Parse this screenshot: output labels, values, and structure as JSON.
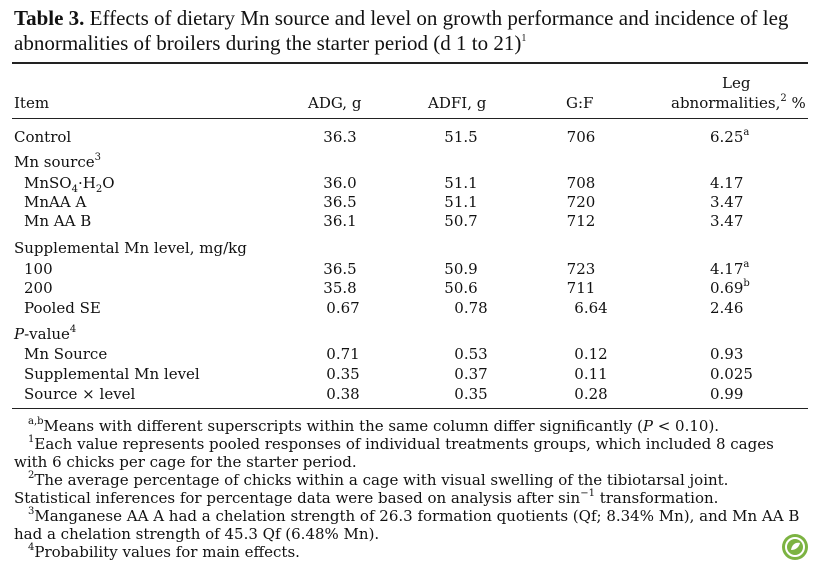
{
  "title": {
    "label": "Table 3.",
    "text": "Effects of dietary Mn source and level on growth performance and incidence of leg abnormalities of broilers during the starter period (d 1 to 21)",
    "sup": "1"
  },
  "header": {
    "item": "Item",
    "adg": "ADG, g",
    "adfi": "ADFI, g",
    "gf": "G:F",
    "leg_line1": "Leg",
    "leg_line2": "abnormalities,",
    "leg_sup": "2",
    "leg_unit": " %"
  },
  "rows": {
    "control": {
      "label": "Control",
      "adg": "36.3",
      "adfi": "51.5",
      "gf": "706",
      "leg": "6.25",
      "leg_sup": "a"
    },
    "mn_source": {
      "label": "Mn source",
      "sup": "3"
    },
    "mnso4": {
      "label_a": "MnSO",
      "sub1": "4",
      "label_b": "·H",
      "sub2": "2",
      "label_c": "O",
      "adg": "36.0",
      "adfi": "51.1",
      "gf": "708",
      "leg": "4.17"
    },
    "mnaa_a": {
      "label": "MnAA A",
      "adg": "36.5",
      "adfi": "51.1",
      "gf": "720",
      "leg": "3.47"
    },
    "mnaa_b": {
      "label": "Mn AA B",
      "adg": "36.1",
      "adfi": "50.7",
      "gf": "712",
      "leg": "3.47"
    },
    "supp_level": {
      "label": "Supplemental Mn level, mg/kg"
    },
    "l100": {
      "label": "100",
      "adg": "36.5",
      "adfi": "50.9",
      "gf": "723",
      "leg": "4.17",
      "leg_sup": "a"
    },
    "l200": {
      "label": "200",
      "adg": "35.8",
      "adfi": "50.6",
      "gf": "711",
      "leg": "0.69",
      "leg_sup": "b"
    },
    "pooled": {
      "label": "Pooled SE",
      "adg": "0.67",
      "adfi": "0.78",
      "gf": "6.64",
      "leg": "2.46"
    },
    "pvalue": {
      "label": "P",
      "label_rest": "-value",
      "sup": "4"
    },
    "p_source": {
      "label": "Mn Source",
      "adg": "0.71",
      "adfi": "0.53",
      "gf": "0.12",
      "leg": "0.93"
    },
    "p_level": {
      "label": "Supplemental Mn level",
      "adg": "0.35",
      "adfi": "0.37",
      "gf": "0.11",
      "leg": "0.025"
    },
    "p_inter": {
      "label": "Source × level",
      "adg": "0.38",
      "adfi": "0.35",
      "gf": "0.28",
      "leg": "0.99"
    }
  },
  "footnotes": {
    "ab_sup": "a,b",
    "ab_text": "Means with different superscripts within the same column differ significantly (",
    "ab_p": "P",
    "ab_tail": " < 0.10).",
    "f1_sup": "1",
    "f1_text": "Each value represents pooled responses of individual treatments groups, which included 8 cages with 6 chicks per cage for the starter period.",
    "f2_sup": "2",
    "f2_text_a": "The average percentage of chicks within a cage with visual swelling of the tibiotarsal joint. Statistical inferences for percentage data were based on analysis after sin",
    "f2_sup2": "−1",
    "f2_text_b": " transformation.",
    "f3_sup": "3",
    "f3_text": "Manganese AA A had a chelation strength of 26.3 formation quotients (Qf; 8.34% Mn), and Mn AA B had a chelation strength of 45.3 Qf (6.48% Mn).",
    "f4_sup": "4",
    "f4_text": "Probability values for main effects."
  },
  "logo_color": "#7cb342"
}
